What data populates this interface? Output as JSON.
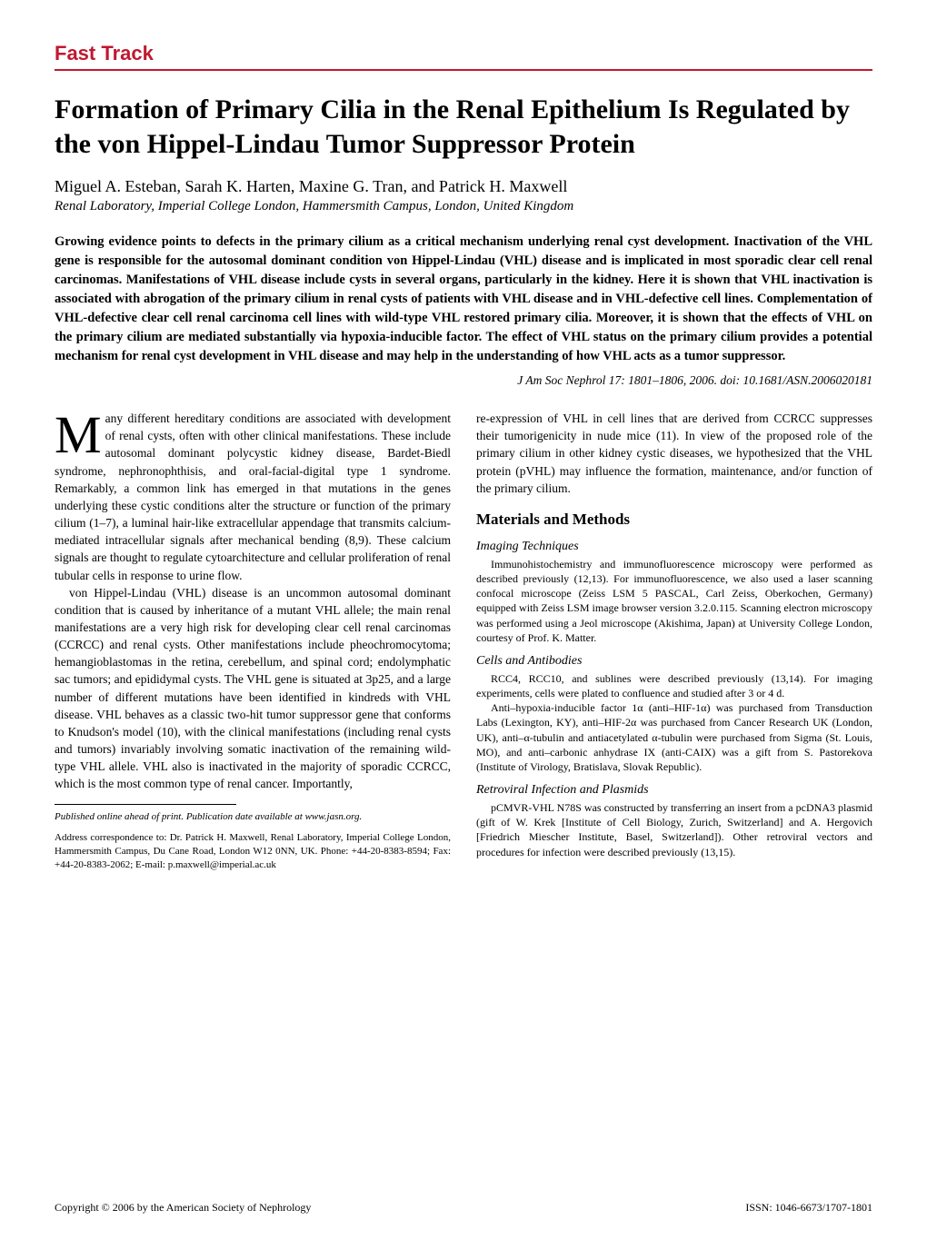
{
  "header": {
    "section": "Fast Track"
  },
  "title": "Formation of Primary Cilia in the Renal Epithelium Is Regulated by the von Hippel-Lindau Tumor Suppressor Protein",
  "authors": "Miguel A. Esteban, Sarah K. Harten, Maxine G. Tran, and Patrick H. Maxwell",
  "affiliation": "Renal Laboratory, Imperial College London, Hammersmith Campus, London, United Kingdom",
  "abstract": "Growing evidence points to defects in the primary cilium as a critical mechanism underlying renal cyst development. Inactivation of the VHL gene is responsible for the autosomal dominant condition von Hippel-Lindau (VHL) disease and is implicated in most sporadic clear cell renal carcinomas. Manifestations of VHL disease include cysts in several organs, particularly in the kidney. Here it is shown that VHL inactivation is associated with abrogation of the primary cilium in renal cysts of patients with VHL disease and in VHL-defective cell lines. Complementation of VHL-defective clear cell renal carcinoma cell lines with wild-type VHL restored primary cilia. Moreover, it is shown that the effects of VHL on the primary cilium are mediated substantially via hypoxia-inducible factor. The effect of VHL status on the primary cilium provides a potential mechanism for renal cyst development in VHL disease and may help in the understanding of how VHL acts as a tumor suppressor.",
  "citation": "J Am Soc Nephrol 17: 1801–1806, 2006. doi: 10.1681/ASN.2006020181",
  "left": {
    "p1_first": "M",
    "p1": "any different hereditary conditions are associated with development of renal cysts, often with other clinical manifestations. These include autosomal dominant polycystic kidney disease, Bardet-Biedl syndrome, nephronophthisis, and oral-facial-digital type 1 syndrome. Remarkably, a common link has emerged in that mutations in the genes underlying these cystic conditions alter the structure or function of the primary cilium (1–7), a luminal hair-like extracellular appendage that transmits calcium-mediated intracellular signals after mechanical bending (8,9). These calcium signals are thought to regulate cytoarchitecture and cellular proliferation of renal tubular cells in response to urine flow.",
    "p2": "von Hippel-Lindau (VHL) disease is an uncommon autosomal dominant condition that is caused by inheritance of a mutant VHL allele; the main renal manifestations are a very high risk for developing clear cell renal carcinomas (CCRCC) and renal cysts. Other manifestations include pheochromocytoma; hemangioblastomas in the retina, cerebellum, and spinal cord; endolymphatic sac tumors; and epididymal cysts. The VHL gene is situated at 3p25, and a large number of different mutations have been identified in kindreds with VHL disease. VHL behaves as a classic two-hit tumor suppressor gene that conforms to Knudson's model (10), with the clinical manifestations (including renal cysts and tumors) invariably involving somatic inactivation of the remaining wild-type VHL allele. VHL also is inactivated in the majority of sporadic CCRCC, which is the most common type of renal cancer. Importantly,",
    "pub_note": "Published online ahead of print. Publication date available at www.jasn.org.",
    "correspondence": "Address correspondence to: Dr. Patrick H. Maxwell, Renal Laboratory, Imperial College London, Hammersmith Campus, Du Cane Road, London W12 0NN, UK. Phone: +44-20-8383-8594; Fax: +44-20-8383-2062; E-mail: p.maxwell@imperial.ac.uk"
  },
  "right": {
    "p1": "re-expression of VHL in cell lines that are derived from CCRCC suppresses their tumorigenicity in nude mice (11). In view of the proposed role of the primary cilium in other kidney cystic diseases, we hypothesized that the VHL protein (pVHL) may influence the formation, maintenance, and/or function of the primary cilium.",
    "h2": "Materials and Methods",
    "h3a": "Imaging Techniques",
    "pa": "Immunohistochemistry and immunofluorescence microscopy were performed as described previously (12,13). For immunofluorescence, we also used a laser scanning confocal microscope (Zeiss LSM 5 PASCAL, Carl Zeiss, Oberkochen, Germany) equipped with Zeiss LSM image browser version 3.2.0.115. Scanning electron microscopy was performed using a Jeol microscope (Akishima, Japan) at University College London, courtesy of Prof. K. Matter.",
    "h3b": "Cells and Antibodies",
    "pb": "RCC4, RCC10, and sublines were described previously (13,14). For imaging experiments, cells were plated to confluence and studied after 3 or 4 d.",
    "pb2": "Anti–hypoxia-inducible factor 1α (anti–HIF-1α) was purchased from Transduction Labs (Lexington, KY), anti–HIF-2α was purchased from Cancer Research UK (London, UK), anti–α-tubulin and antiacetylated α-tubulin were purchased from Sigma (St. Louis, MO), and anti–carbonic anhydrase IX (anti-CAIX) was a gift from S. Pastorekova (Institute of Virology, Bratislava, Slovak Republic).",
    "h3c": "Retroviral Infection and Plasmids",
    "pc": "pCMVR-VHL N78S was constructed by transferring an insert from a pcDNA3 plasmid (gift of W. Krek [Institute of Cell Biology, Zurich, Switzerland] and A. Hergovich [Friedrich Miescher Institute, Basel, Switzerland]). Other retroviral vectors and procedures for infection were described previously (13,15)."
  },
  "footer": {
    "left": "Copyright © 2006 by the American Society of Nephrology",
    "right": "ISSN: 1046-6673/1707-1801"
  },
  "colors": {
    "accent": "#c01830",
    "text": "#000000",
    "bg": "#ffffff"
  }
}
